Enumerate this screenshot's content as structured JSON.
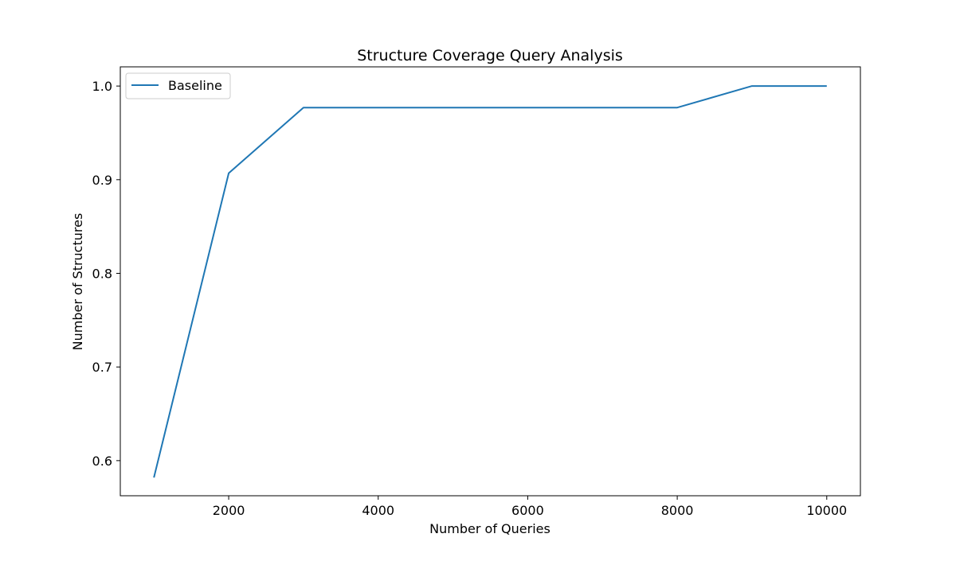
{
  "chart_data": {
    "type": "line",
    "title": "Structure Coverage Query Analysis",
    "xlabel": "Number of Queries",
    "ylabel": "Number of Structures",
    "xlim": [
      550,
      10450
    ],
    "ylim": [
      0.6,
      1.02
    ],
    "ylim_full": [
      0.5625,
      1.0205
    ],
    "xticks": [
      2000,
      4000,
      6000,
      8000,
      10000
    ],
    "xtick_labels": [
      "2000",
      "4000",
      "6000",
      "8000",
      "10000"
    ],
    "yticks": [
      0.6,
      0.7,
      0.8,
      0.9,
      1.0
    ],
    "ytick_labels": [
      "0.6",
      "0.7",
      "0.8",
      "0.9",
      "1.0"
    ],
    "grid": false,
    "legend_position": "top-left",
    "series": [
      {
        "name": "Baseline",
        "color": "#1f77b4",
        "x": [
          1000,
          2000,
          3000,
          4000,
          5000,
          6000,
          7000,
          8000,
          9000,
          10000
        ],
        "y": [
          0.582,
          0.907,
          0.977,
          0.977,
          0.977,
          0.977,
          0.977,
          0.977,
          1.0,
          1.0
        ]
      }
    ]
  }
}
